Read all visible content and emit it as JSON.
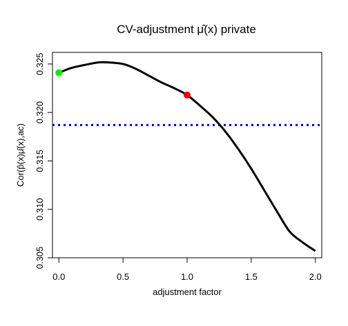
{
  "chart_data": {
    "type": "line",
    "title": "CV-adjustment μ̂(x) private",
    "xlabel": "adjustment factor",
    "ylabel": "Cor(p̂(x)μ̂(x),ac)",
    "xlim": [
      -0.05,
      2.05
    ],
    "ylim": [
      0.305,
      0.3262
    ],
    "xticks": [
      0.0,
      0.5,
      1.0,
      1.5,
      2.0
    ],
    "xtick_labels": [
      "0.0",
      "0.5",
      "1.0",
      "1.5",
      "2.0"
    ],
    "yticks": [
      0.305,
      0.31,
      0.315,
      0.32,
      0.325
    ],
    "ytick_labels": [
      "0.305",
      "0.310",
      "0.315",
      "0.320",
      "0.325"
    ],
    "grid": false,
    "legend": "none",
    "series": [
      {
        "color": "#000000",
        "x": [
          0.0,
          0.1,
          0.2,
          0.3,
          0.36,
          0.5,
          0.6,
          0.7,
          0.8,
          0.9,
          1.0,
          1.1,
          1.2,
          1.3,
          1.4,
          1.5,
          1.6,
          1.7,
          1.8,
          1.9,
          2.0
        ],
        "y": [
          0.3241,
          0.3246,
          0.3249,
          0.32515,
          0.32518,
          0.325,
          0.3245,
          0.3238,
          0.3231,
          0.3225,
          0.3218,
          0.3207,
          0.3195,
          0.318,
          0.3162,
          0.3142,
          0.312,
          0.3098,
          0.3077,
          0.3066,
          0.3057
        ]
      }
    ],
    "reference_line": {
      "y": 0.3187,
      "color": "#0000cc",
      "style": "dotted"
    },
    "points": [
      {
        "x": 0.0,
        "y": 0.3241,
        "color": "#00ee00"
      },
      {
        "x": 1.0,
        "y": 0.3218,
        "color": "#ee0000"
      }
    ]
  }
}
